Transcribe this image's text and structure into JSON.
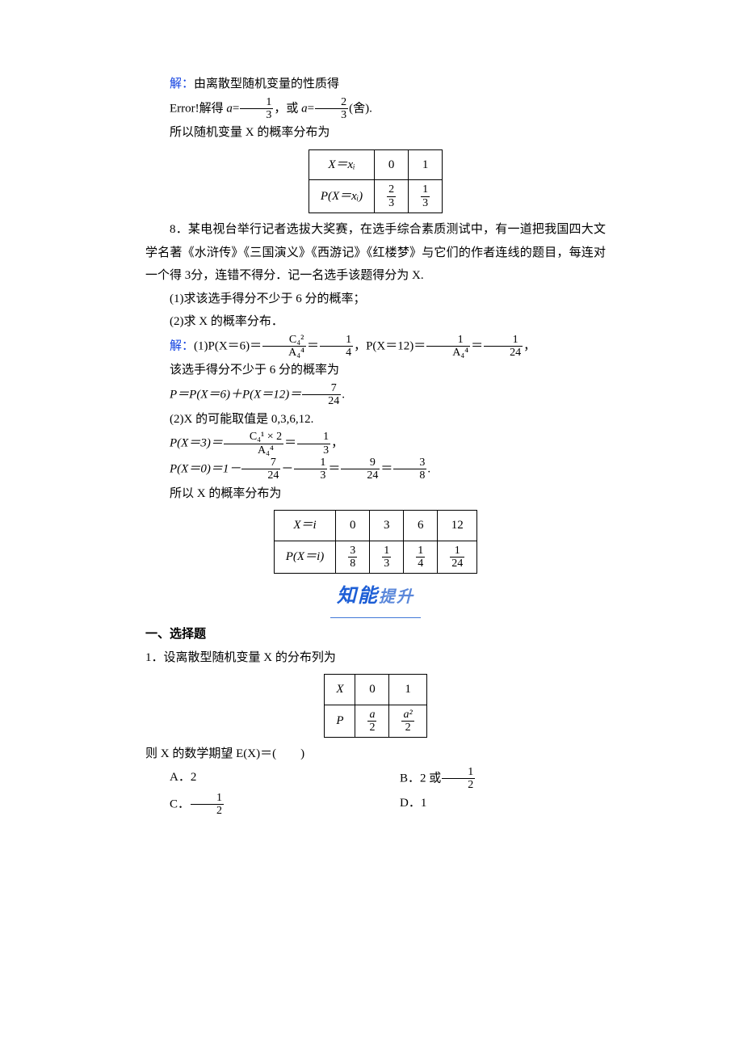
{
  "p7": {
    "l1_prefix": "解：",
    "l1": "由离散型随机变量的性质得",
    "l2a": "Error!解得 ",
    "l2b": "a",
    "l2c": "=",
    "l2num1": "1",
    "l2den1": "3",
    "l2d": "，或 ",
    "l2e": "a",
    "l2f": "=",
    "l2num2": "2",
    "l2den2": "3",
    "l2g": "(舍).",
    "l3": "所以随机变量 X 的概率分布为",
    "table": {
      "h1": "X＝xᵢ",
      "h2": "0",
      "h3": "1",
      "r1": "P(X＝xᵢ)",
      "c1n": "2",
      "c1d": "3",
      "c2n": "1",
      "c2d": "3"
    }
  },
  "p8": {
    "intro": "8．某电视台举行记者选拔大奖赛，在选手综合素质测试中，有一道把我国四大文学名著《水浒传》《三国演义》《西游记》《红楼梦》与它们的作者连线的题目，每连对一个得 3分，连错不得分．记一名选手该题得分为 X.",
    "q1": "(1)求该选手得分不少于 6 分的概率；",
    "q2": "(2)求 X 的概率分布．",
    "sol_label": "解：",
    "s1a": "(1)P(X＝6)＝",
    "s1num1": "C₄²",
    "s1den1": "A₄⁴",
    "s1b": "＝",
    "s1num2": "1",
    "s1den2": "4",
    "s1c": "，P(X＝12)＝",
    "s1num3": "1",
    "s1den3": "A₄⁴",
    "s1d": "＝",
    "s1num4": "1",
    "s1den4": "24",
    "s1e": "，",
    "s2": "该选手得分不少于 6 分的概率为",
    "s3a": "P＝P(X＝6)＋P(X＝12)＝",
    "s3num": "7",
    "s3den": "24",
    "s3b": ".",
    "s4": "(2)X 的可能取值是 0,3,6,12.",
    "s5a": "P(X＝3)＝",
    "s5num1": "C₄¹ × 2",
    "s5den1": "A₄⁴",
    "s5b": "＝",
    "s5num2": "1",
    "s5den2": "3",
    "s5c": "，",
    "s6a": "P(X＝0)＝1－",
    "s6num1": "7",
    "s6den1": "24",
    "s6b": "－",
    "s6num2": "1",
    "s6den2": "3",
    "s6c": "＝",
    "s6num3": "9",
    "s6den3": "24",
    "s6d": "＝",
    "s6num4": "3",
    "s6den4": "8",
    "s6e": ".",
    "s7": "所以 X 的概率分布为",
    "table": {
      "h1": "X＝i",
      "v0": "0",
      "v1": "3",
      "v2": "6",
      "v3": "12",
      "r1": "P(X＝i)",
      "c0n": "3",
      "c0d": "8",
      "c1n": "1",
      "c1d": "3",
      "c2n": "1",
      "c2d": "4",
      "c3n": "1",
      "c3d": "24"
    }
  },
  "banner": {
    "big": "知能",
    "small": "提升"
  },
  "sec2": {
    "h": "一、选择题",
    "q1": "1．设离散型随机变量 X 的分布列为",
    "q1_table": {
      "h1": "X",
      "v0": "0",
      "v1": "1",
      "r1": "P",
      "c0n": "a",
      "c0d": "2",
      "c1n": "a²",
      "c1d": "2"
    },
    "q1b": "则 X 的数学期望 E(X)＝(　　)",
    "optA": "A．2",
    "optB_pre": "B．2 或",
    "optB_num": "1",
    "optB_den": "2",
    "optC_pre": "C．",
    "optC_num": "1",
    "optC_den": "2",
    "optD": "D．1"
  }
}
